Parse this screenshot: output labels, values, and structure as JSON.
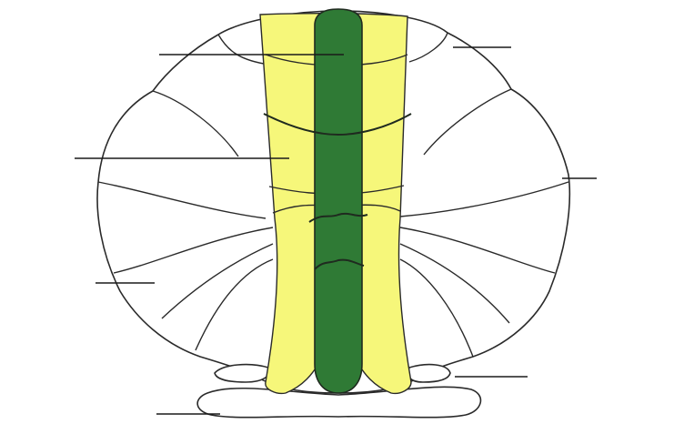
{
  "colors": {
    "background": "#ffffff",
    "intermediate_zone": "#f6f77a",
    "median_zone": "#2f7a35",
    "outline": "#2a2a2a"
  },
  "diagram": {
    "label_leaders": [
      {
        "name": "leader-top-left"
      },
      {
        "name": "leader-top-right"
      },
      {
        "name": "leader-mid-left"
      },
      {
        "name": "leader-mid-right"
      },
      {
        "name": "leader-lower-left"
      },
      {
        "name": "leader-lower-right"
      },
      {
        "name": "leader-bottom-left"
      }
    ]
  }
}
